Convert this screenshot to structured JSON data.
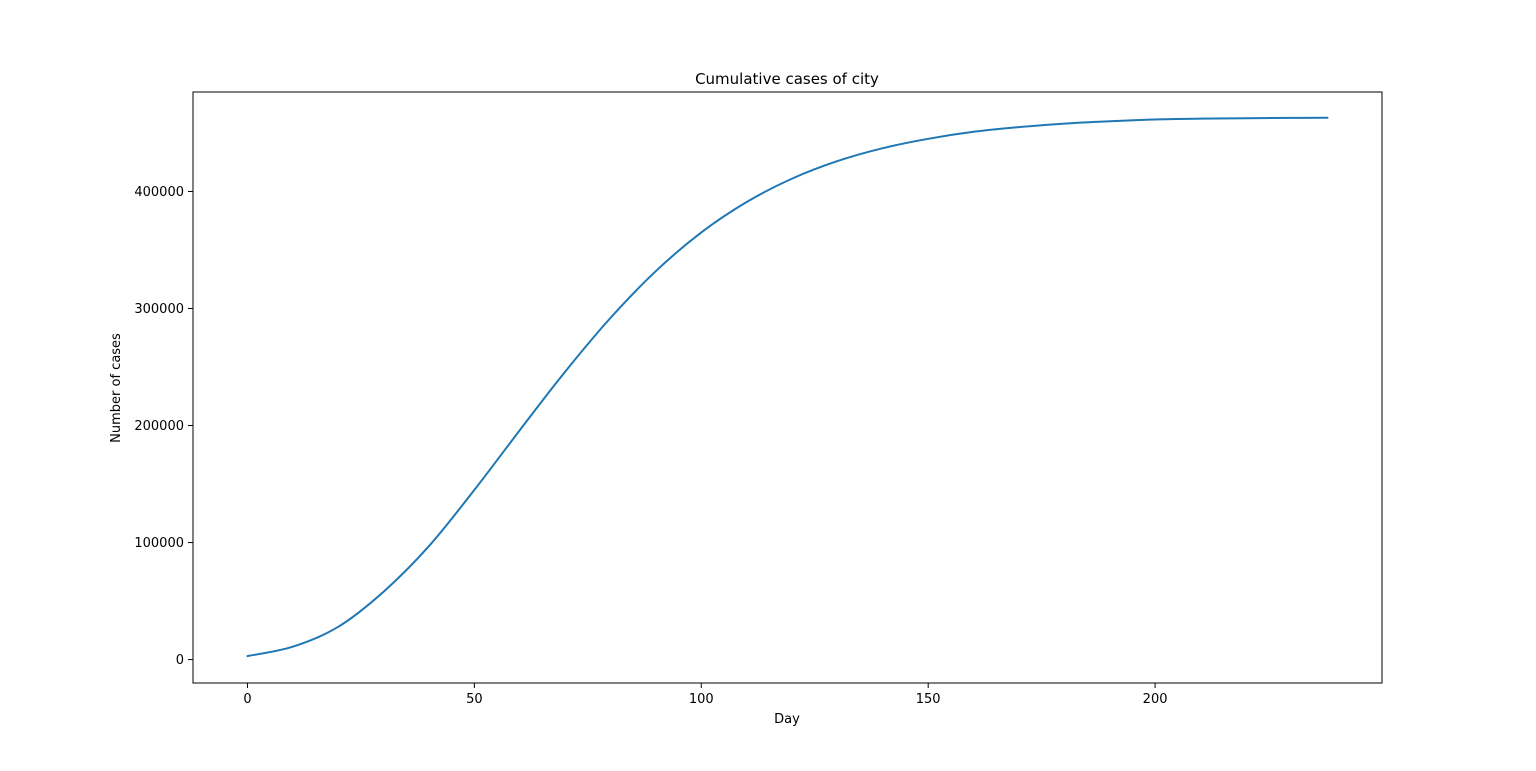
{
  "chart_data": {
    "type": "line",
    "title": "Cumulative cases of city",
    "xlabel": "Day",
    "ylabel": "Number of cases",
    "xlim": [
      -12,
      250
    ],
    "ylim": [
      -20000,
      485000
    ],
    "xticks": [
      0,
      50,
      100,
      150,
      200
    ],
    "yticks": [
      0,
      100000,
      200000,
      300000,
      400000
    ],
    "xtick_labels": [
      "0",
      "50",
      "100",
      "150",
      "200"
    ],
    "ytick_labels": [
      "0",
      "100000",
      "200000",
      "300000",
      "400000"
    ],
    "grid": false,
    "line_color": "#1f77b4",
    "series": [
      {
        "x": [
          0,
          10,
          20,
          30,
          40,
          50,
          60,
          70,
          80,
          90,
          100,
          110,
          120,
          130,
          140,
          150,
          160,
          170,
          180,
          190,
          200,
          210,
          220,
          230,
          238
        ],
        "y": [
          3000,
          11000,
          28000,
          58000,
          97000,
          145000,
          196000,
          246000,
          292000,
          332000,
          365000,
          391000,
          411000,
          426000,
          437000,
          445000,
          451000,
          455000,
          458000,
          460000,
          461500,
          462200,
          462600,
          462900,
          463000
        ]
      }
    ]
  }
}
